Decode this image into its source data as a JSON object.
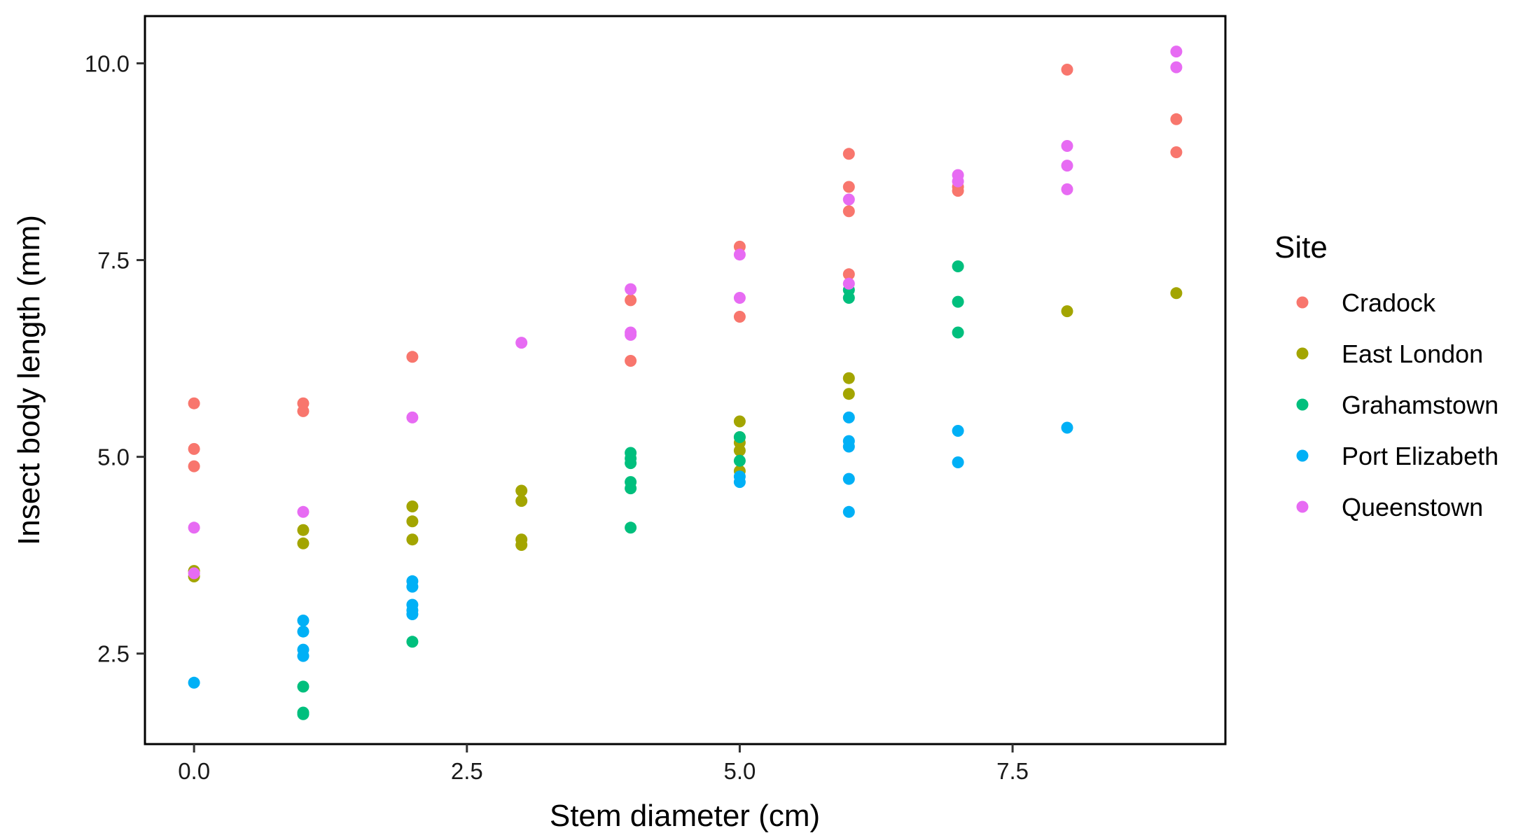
{
  "chart_data": {
    "type": "scatter",
    "title": "",
    "xlabel": "Stem diameter (cm)",
    "ylabel": "Insect body length (mm)",
    "xlim": [
      -0.45,
      9.45
    ],
    "ylim": [
      1.35,
      10.6
    ],
    "xticks": [
      0,
      2.5,
      5,
      7.5
    ],
    "xtick_labels": [
      "0.0",
      "2.5",
      "5.0",
      "7.5"
    ],
    "yticks": [
      2.5,
      5,
      7.5,
      10
    ],
    "ytick_labels": [
      "2.5",
      "5.0",
      "7.5",
      "10.0"
    ],
    "grid": false,
    "legend": {
      "title": "Site",
      "position": "right"
    },
    "series": [
      {
        "name": "Cradock",
        "color": "#F8766D",
        "points": [
          [
            0,
            5.68
          ],
          [
            0,
            5.1
          ],
          [
            0,
            4.88
          ],
          [
            1,
            5.68
          ],
          [
            1,
            5.58
          ],
          [
            2,
            6.27
          ],
          [
            4,
            6.99
          ],
          [
            4,
            6.22
          ],
          [
            5,
            7.67
          ],
          [
            5,
            6.78
          ],
          [
            6,
            8.85
          ],
          [
            6,
            8.43
          ],
          [
            6,
            8.12
          ],
          [
            6,
            7.32
          ],
          [
            7,
            8.38
          ],
          [
            7,
            8.43
          ],
          [
            8,
            9.92
          ],
          [
            9,
            9.29
          ],
          [
            9,
            8.87
          ]
        ]
      },
      {
        "name": "East London",
        "color": "#A3A500",
        "points": [
          [
            0,
            3.55
          ],
          [
            0,
            3.48
          ],
          [
            1,
            4.07
          ],
          [
            1,
            3.9
          ],
          [
            2,
            4.37
          ],
          [
            2,
            4.18
          ],
          [
            2,
            3.95
          ],
          [
            3,
            4.57
          ],
          [
            3,
            4.44
          ],
          [
            3,
            3.95
          ],
          [
            3,
            3.88
          ],
          [
            5,
            5.45
          ],
          [
            5,
            5.25
          ],
          [
            5,
            5.18
          ],
          [
            5,
            5.08
          ],
          [
            5,
            4.82
          ],
          [
            6,
            6.0
          ],
          [
            6,
            5.8
          ],
          [
            8,
            6.85
          ],
          [
            9,
            7.08
          ]
        ]
      },
      {
        "name": "Grahamstown",
        "color": "#00BF7D",
        "points": [
          [
            1,
            2.08
          ],
          [
            1,
            1.75
          ],
          [
            1,
            1.73
          ],
          [
            2,
            2.65
          ],
          [
            4,
            5.05
          ],
          [
            4,
            4.98
          ],
          [
            4,
            4.92
          ],
          [
            4,
            4.68
          ],
          [
            4,
            4.6
          ],
          [
            4,
            4.1
          ],
          [
            5,
            5.25
          ],
          [
            5,
            4.95
          ],
          [
            6,
            7.12
          ],
          [
            6,
            7.02
          ],
          [
            7,
            7.42
          ],
          [
            7,
            6.97
          ],
          [
            7,
            6.58
          ]
        ]
      },
      {
        "name": "Port Elizabeth",
        "color": "#00B0F6",
        "points": [
          [
            0,
            2.13
          ],
          [
            1,
            2.92
          ],
          [
            1,
            2.78
          ],
          [
            1,
            2.55
          ],
          [
            1,
            2.47
          ],
          [
            2,
            3.42
          ],
          [
            2,
            3.35
          ],
          [
            2,
            3.12
          ],
          [
            2,
            3.05
          ],
          [
            2,
            3.0
          ],
          [
            5,
            4.75
          ],
          [
            5,
            4.68
          ],
          [
            6,
            5.5
          ],
          [
            6,
            5.2
          ],
          [
            6,
            5.13
          ],
          [
            6,
            4.72
          ],
          [
            6,
            4.3
          ],
          [
            7,
            5.33
          ],
          [
            7,
            4.93
          ],
          [
            8,
            5.37
          ]
        ]
      },
      {
        "name": "Queenstown",
        "color": "#E76BF3",
        "points": [
          [
            0,
            4.1
          ],
          [
            0,
            3.52
          ],
          [
            1,
            4.3
          ],
          [
            2,
            5.5
          ],
          [
            3,
            6.45
          ],
          [
            4,
            7.13
          ],
          [
            4,
            6.58
          ],
          [
            4,
            6.55
          ],
          [
            5,
            7.57
          ],
          [
            5,
            7.02
          ],
          [
            6,
            8.27
          ],
          [
            6,
            7.2
          ],
          [
            7,
            8.58
          ],
          [
            7,
            8.5
          ],
          [
            8,
            8.95
          ],
          [
            8,
            8.7
          ],
          [
            8,
            8.4
          ],
          [
            9,
            10.15
          ],
          [
            9,
            9.95
          ]
        ]
      }
    ]
  }
}
